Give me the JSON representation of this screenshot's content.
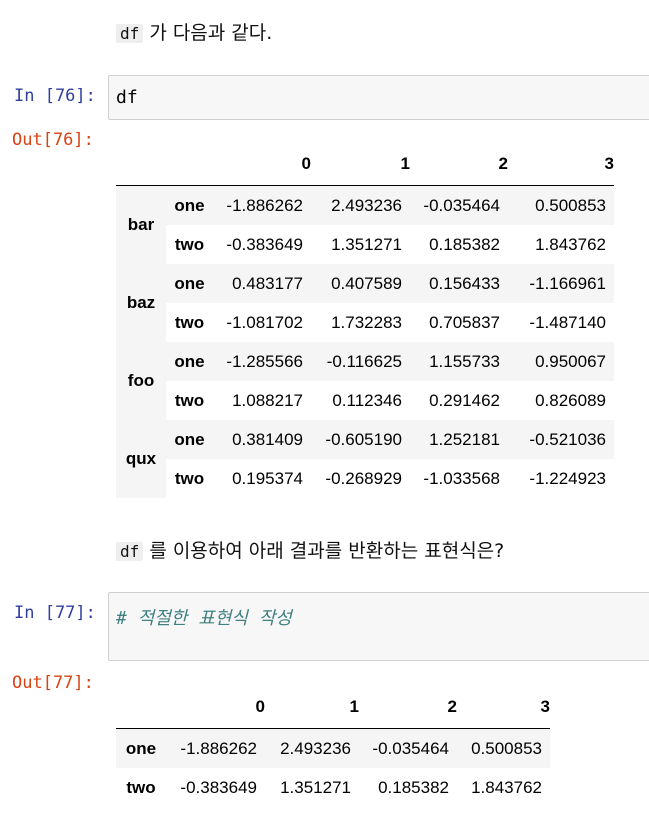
{
  "markdown1": {
    "code": "df",
    "text": "가 다음과 같다."
  },
  "cell76": {
    "in_prompt": "In [76]:",
    "code": "df",
    "out_prompt": "Out[76]:",
    "columns": [
      "0",
      "1",
      "2",
      "3"
    ],
    "groups": [
      {
        "outer": "bar",
        "rows": [
          {
            "inner": "one",
            "values": [
              "-1.886262",
              "2.493236",
              "-0.035464",
              "0.500853"
            ]
          },
          {
            "inner": "two",
            "values": [
              "-0.383649",
              "1.351271",
              "0.185382",
              "1.843762"
            ]
          }
        ]
      },
      {
        "outer": "baz",
        "rows": [
          {
            "inner": "one",
            "values": [
              "0.483177",
              "0.407589",
              "0.156433",
              "-1.166961"
            ]
          },
          {
            "inner": "two",
            "values": [
              "-1.081702",
              "1.732283",
              "0.705837",
              "-1.487140"
            ]
          }
        ]
      },
      {
        "outer": "foo",
        "rows": [
          {
            "inner": "one",
            "values": [
              "-1.285566",
              "-0.116625",
              "1.155733",
              "0.950067"
            ]
          },
          {
            "inner": "two",
            "values": [
              "1.088217",
              "0.112346",
              "0.291462",
              "0.826089"
            ]
          }
        ]
      },
      {
        "outer": "qux",
        "rows": [
          {
            "inner": "one",
            "values": [
              "0.381409",
              "-0.605190",
              "1.252181",
              "-0.521036"
            ]
          },
          {
            "inner": "two",
            "values": [
              "0.195374",
              "-0.268929",
              "-1.033568",
              "-1.224923"
            ]
          }
        ]
      }
    ]
  },
  "markdown2": {
    "code": "df",
    "text": "를 이용하여 아래 결과를 반환하는 표현식은?"
  },
  "cell77": {
    "in_prompt": "In [77]:",
    "code": "# 적절한 표현식 작성",
    "out_prompt": "Out[77]:",
    "columns": [
      "0",
      "1",
      "2",
      "3"
    ],
    "rows": [
      {
        "index": "one",
        "values": [
          "-1.886262",
          "2.493236",
          "-0.035464",
          "0.500853"
        ]
      },
      {
        "index": "two",
        "values": [
          "-0.383649",
          "1.351271",
          "0.185382",
          "1.843762"
        ]
      }
    ]
  }
}
